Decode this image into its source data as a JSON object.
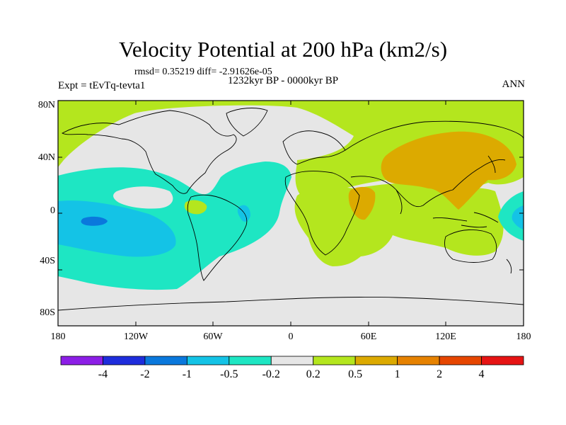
{
  "title": "Velocity Potential at 200 hPa (km2/s)",
  "stats_line": "rmsd= 0.35219 diff= -2.91626e-05",
  "period": "1232kyr BP - 0000kyr BP",
  "experiment": "Expt = tEvTq-tevta1",
  "season": "ANN",
  "lat_ticks": [
    "80N",
    "40N",
    "0",
    "40S",
    "80S"
  ],
  "lon_ticks": [
    "180",
    "120W",
    "60W",
    "0",
    "60E",
    "120E",
    "180"
  ],
  "colorbar": {
    "colors": [
      "#8c1ee6",
      "#1e2ddc",
      "#0a78dc",
      "#14c3e6",
      "#1ee6c3",
      "#e6e6e6",
      "#b4e61e",
      "#dcaa00",
      "#e68200",
      "#e64600",
      "#e61414"
    ],
    "labels": [
      "-4",
      "-2",
      "-1",
      "-0.5",
      "-0.2",
      "0.2",
      "0.5",
      "1",
      "2",
      "4"
    ]
  },
  "field_colors": {
    "ocean_default": "#e6e6e6",
    "cyan": "#1ee6c3",
    "blue_light": "#14c3e6",
    "blue": "#0a78dc",
    "yellow_green": "#b4e61e",
    "orange": "#dcaa00"
  }
}
